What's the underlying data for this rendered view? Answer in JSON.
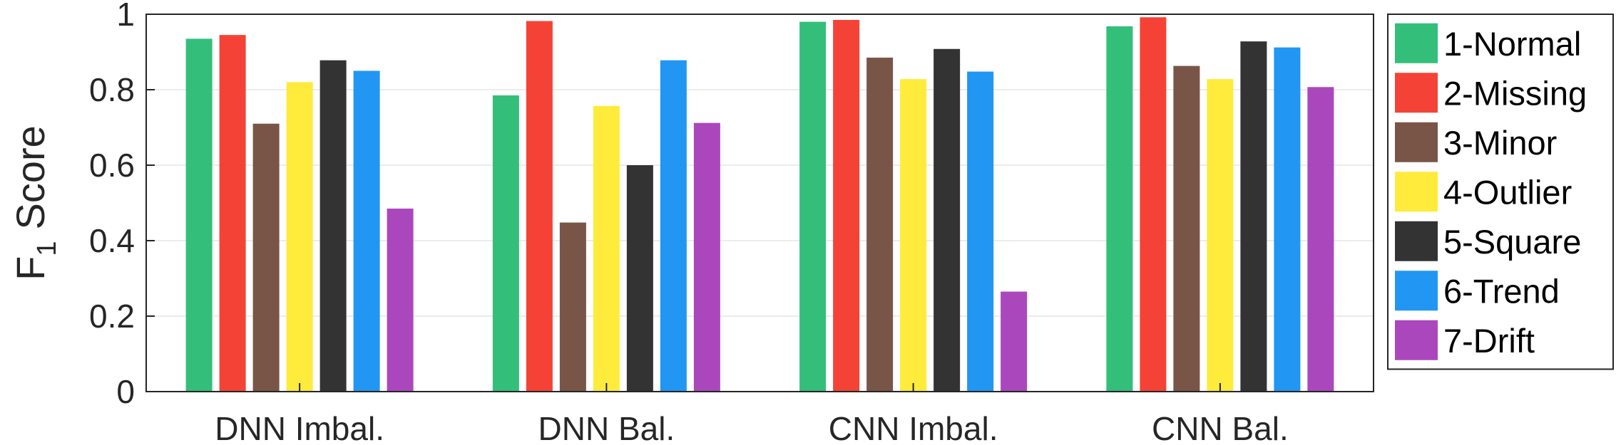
{
  "chart_data": {
    "type": "bar",
    "categories": [
      "DNN Imbal.",
      "DNN Bal.",
      "CNN Imbal.",
      "CNN Bal."
    ],
    "ylabel": "F",
    "ylabel_subscript": "1",
    "ylabel_suffix": "Score",
    "ylim": [
      0,
      1
    ],
    "yticks": [
      0,
      0.2,
      0.4,
      0.6,
      0.8,
      1
    ],
    "ytick_labels": [
      "0",
      "0.2",
      "0.4",
      "0.6",
      "0.8",
      "1"
    ],
    "grid": true,
    "legend_position": "right",
    "series": [
      {
        "name": "1-Normal",
        "color": "#33bf7a",
        "values": [
          0.935,
          0.785,
          0.98,
          0.968
        ]
      },
      {
        "name": "2-Missing",
        "color": "#f44336",
        "values": [
          0.945,
          0.982,
          0.985,
          0.992
        ]
      },
      {
        "name": "3-Minor",
        "color": "#795548",
        "values": [
          0.71,
          0.448,
          0.885,
          0.863
        ]
      },
      {
        "name": "4-Outlier",
        "color": "#ffeb3b",
        "values": [
          0.82,
          0.757,
          0.828,
          0.828
        ]
      },
      {
        "name": "5-Square",
        "color": "#333333",
        "values": [
          0.878,
          0.6,
          0.908,
          0.928
        ]
      },
      {
        "name": "6-Trend",
        "color": "#2196f3",
        "values": [
          0.85,
          0.878,
          0.848,
          0.912
        ]
      },
      {
        "name": "7-Drift",
        "color": "#ab47bc",
        "values": [
          0.485,
          0.712,
          0.265,
          0.807
        ]
      }
    ]
  }
}
